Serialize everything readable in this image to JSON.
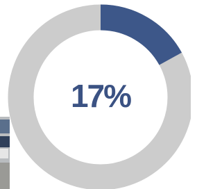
{
  "chart_data": {
    "type": "donut",
    "values": [
      17
    ],
    "value_labels": [
      "17%"
    ],
    "color": "#3d5789",
    "track_color": "#cccccc"
  }
}
